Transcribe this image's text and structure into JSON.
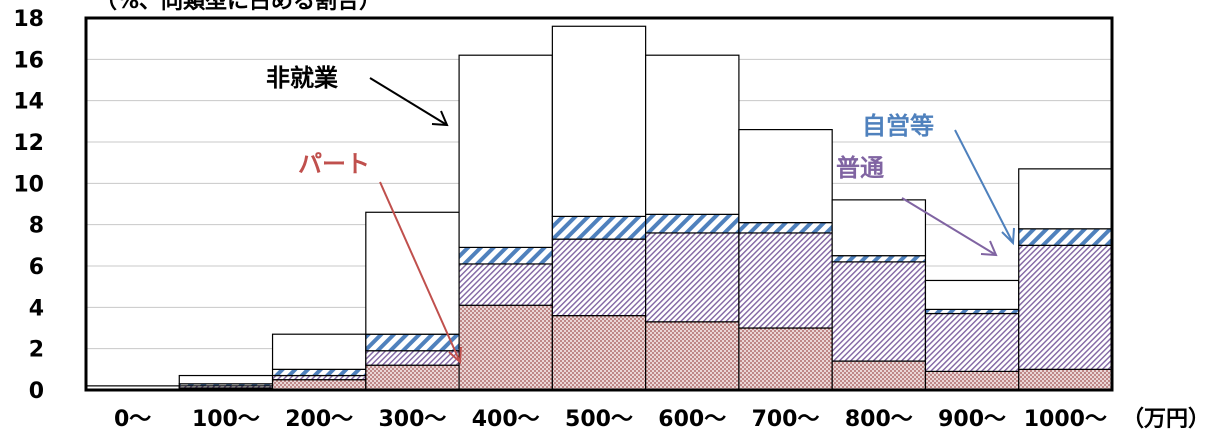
{
  "colors": {
    "part": "#c0504d",
    "ordinary": "#8064a2",
    "selfemployed": "#4f81bd",
    "nonworking": "#000000",
    "part_fill": "#c49494",
    "ordinary_fill": "#9080b0",
    "selfemployed_fill": "#4f81bd"
  },
  "chart_data": {
    "type": "bar",
    "stacked": true,
    "ylabel": "（%、同類型に占める割合）",
    "xunit": "（万円）",
    "ylim": [
      0,
      18
    ],
    "yticks": [
      "0",
      "2",
      "4",
      "6",
      "8",
      "10",
      "12",
      "14",
      "16",
      "18"
    ],
    "categories": [
      "0～",
      "100～",
      "200～",
      "300～",
      "400～",
      "500～",
      "600～",
      "700～",
      "800～",
      "900～",
      "1000～"
    ],
    "series": [
      {
        "name": "パート",
        "values": [
          0.0,
          0.1,
          0.5,
          1.2,
          4.1,
          3.6,
          3.3,
          3.0,
          1.4,
          0.9,
          1.0
        ]
      },
      {
        "name": "普通",
        "values": [
          0.0,
          0.1,
          0.2,
          0.7,
          2.0,
          3.7,
          4.3,
          4.6,
          4.8,
          2.8,
          6.0
        ]
      },
      {
        "name": "自営等",
        "values": [
          0.0,
          0.1,
          0.3,
          0.8,
          0.8,
          1.1,
          0.9,
          0.5,
          0.3,
          0.2,
          0.8
        ]
      },
      {
        "name": "非就業",
        "values": [
          0.2,
          0.4,
          1.7,
          5.9,
          9.3,
          9.2,
          7.7,
          4.5,
          2.7,
          1.4,
          2.9
        ]
      }
    ],
    "annotations": {
      "nonworking": "非就業",
      "part": "パート",
      "selfemployed": "自営等",
      "ordinary": "普通"
    },
    "grid": true
  }
}
